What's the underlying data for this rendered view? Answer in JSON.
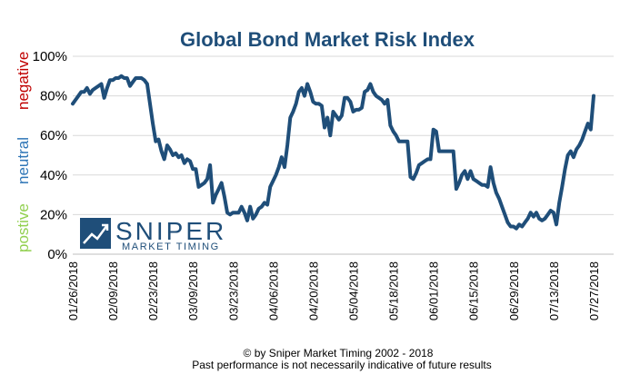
{
  "colors": {
    "title": "#1f4e79",
    "line": "#1f4e79",
    "grid": "#d9d9d9",
    "negative": "#c00000",
    "neutral": "#2e75b6",
    "positive": "#92d050",
    "logo": "#1f4e79"
  },
  "side_labels": {
    "negative": "negative",
    "neutral": "neutral",
    "positive": "postive"
  },
  "logo": {
    "icon": "chart-arrow-icon",
    "line1": "SNIPER",
    "line2": "MARKET TIMING"
  },
  "footer": {
    "line1": "© by Sniper Market Timing 2002 - 2018",
    "line2": "Past performance is not necessarily indicative of future results"
  },
  "chart_data": {
    "type": "line",
    "title": "Global Bond Market Risk Index",
    "xlabel": "",
    "ylabel": "",
    "ylim": [
      0,
      100
    ],
    "yticks": [
      "0%",
      "20%",
      "40%",
      "60%",
      "80%",
      "100%"
    ],
    "grid": "horizontal",
    "x_start": "01/26/2018",
    "x_end": "08/03/2018",
    "xticks": [
      "01/26/2018",
      "02/09/2018",
      "02/23/2018",
      "03/09/2018",
      "03/23/2018",
      "04/06/2018",
      "04/20/2018",
      "05/04/2018",
      "05/18/2018",
      "06/01/2018",
      "06/15/2018",
      "06/29/2018",
      "07/13/2018",
      "07/27/2018"
    ],
    "series": [
      {
        "values": [
          [
            "01/26/2018",
            76
          ],
          [
            "01/27/2018",
            78
          ],
          [
            "01/28/2018",
            80
          ],
          [
            "01/29/2018",
            82
          ],
          [
            "01/30/2018",
            82
          ],
          [
            "01/31/2018",
            84
          ],
          [
            "02/01/2018",
            81
          ],
          [
            "02/02/2018",
            83
          ],
          [
            "02/03/2018",
            84
          ],
          [
            "02/04/2018",
            85
          ],
          [
            "02/05/2018",
            86
          ],
          [
            "02/06/2018",
            79
          ],
          [
            "02/07/2018",
            84
          ],
          [
            "02/08/2018",
            88
          ],
          [
            "02/09/2018",
            88
          ],
          [
            "02/10/2018",
            89
          ],
          [
            "02/11/2018",
            89
          ],
          [
            "02/12/2018",
            90
          ],
          [
            "02/13/2018",
            89
          ],
          [
            "02/14/2018",
            89
          ],
          [
            "02/15/2018",
            85
          ],
          [
            "02/16/2018",
            87
          ],
          [
            "02/17/2018",
            89
          ],
          [
            "02/18/2018",
            89
          ],
          [
            "02/19/2018",
            89
          ],
          [
            "02/20/2018",
            88
          ],
          [
            "02/21/2018",
            86
          ],
          [
            "02/22/2018",
            76
          ],
          [
            "02/23/2018",
            66
          ],
          [
            "02/24/2018",
            57
          ],
          [
            "02/25/2018",
            58
          ],
          [
            "02/26/2018",
            52
          ],
          [
            "02/27/2018",
            48
          ],
          [
            "02/28/2018",
            55
          ],
          [
            "03/01/2018",
            53
          ],
          [
            "03/02/2018",
            50
          ],
          [
            "03/03/2018",
            51
          ],
          [
            "03/04/2018",
            49
          ],
          [
            "03/05/2018",
            50
          ],
          [
            "03/06/2018",
            46
          ],
          [
            "03/07/2018",
            48
          ],
          [
            "03/08/2018",
            47
          ],
          [
            "03/09/2018",
            43
          ],
          [
            "03/10/2018",
            43
          ],
          [
            "03/11/2018",
            34
          ],
          [
            "03/12/2018",
            35
          ],
          [
            "03/13/2018",
            36
          ],
          [
            "03/14/2018",
            38
          ],
          [
            "03/15/2018",
            45
          ],
          [
            "03/16/2018",
            26
          ],
          [
            "03/17/2018",
            30
          ],
          [
            "03/18/2018",
            33
          ],
          [
            "03/19/2018",
            36
          ],
          [
            "03/20/2018",
            29
          ],
          [
            "03/21/2018",
            21
          ],
          [
            "03/22/2018",
            20
          ],
          [
            "03/23/2018",
            21
          ],
          [
            "03/24/2018",
            21
          ],
          [
            "03/25/2018",
            21
          ],
          [
            "03/26/2018",
            24
          ],
          [
            "03/27/2018",
            21
          ],
          [
            "03/28/2018",
            17
          ],
          [
            "03/29/2018",
            24
          ],
          [
            "03/30/2018",
            18
          ],
          [
            "03/31/2018",
            20
          ],
          [
            "04/01/2018",
            23
          ],
          [
            "04/02/2018",
            24
          ],
          [
            "04/03/2018",
            26
          ],
          [
            "04/04/2018",
            25
          ],
          [
            "04/05/2018",
            34
          ],
          [
            "04/06/2018",
            37
          ],
          [
            "04/07/2018",
            40
          ],
          [
            "04/08/2018",
            44
          ],
          [
            "04/09/2018",
            49
          ],
          [
            "04/10/2018",
            44
          ],
          [
            "04/11/2018",
            55
          ],
          [
            "04/12/2018",
            69
          ],
          [
            "04/13/2018",
            72
          ],
          [
            "04/14/2018",
            76
          ],
          [
            "04/15/2018",
            82
          ],
          [
            "04/16/2018",
            84
          ],
          [
            "04/17/2018",
            80
          ],
          [
            "04/18/2018",
            86
          ],
          [
            "04/19/2018",
            82
          ],
          [
            "04/20/2018",
            77
          ],
          [
            "04/21/2018",
            76
          ],
          [
            "04/22/2018",
            76
          ],
          [
            "04/23/2018",
            75
          ],
          [
            "04/24/2018",
            64
          ],
          [
            "04/25/2018",
            69
          ],
          [
            "04/26/2018",
            60
          ],
          [
            "04/27/2018",
            72
          ],
          [
            "04/28/2018",
            70
          ],
          [
            "04/29/2018",
            68
          ],
          [
            "04/30/2018",
            70
          ],
          [
            "05/01/2018",
            79
          ],
          [
            "05/02/2018",
            79
          ],
          [
            "05/03/2018",
            77
          ],
          [
            "05/04/2018",
            72
          ],
          [
            "05/05/2018",
            73
          ],
          [
            "05/06/2018",
            73
          ],
          [
            "05/07/2018",
            74
          ],
          [
            "05/08/2018",
            82
          ],
          [
            "05/09/2018",
            83
          ],
          [
            "05/10/2018",
            86
          ],
          [
            "05/11/2018",
            82
          ],
          [
            "05/12/2018",
            80
          ],
          [
            "05/13/2018",
            79
          ],
          [
            "05/14/2018",
            78
          ],
          [
            "05/15/2018",
            76
          ],
          [
            "05/16/2018",
            78
          ],
          [
            "05/17/2018",
            65
          ],
          [
            "05/18/2018",
            62
          ],
          [
            "05/19/2018",
            60
          ],
          [
            "05/20/2018",
            57
          ],
          [
            "05/21/2018",
            57
          ],
          [
            "05/22/2018",
            57
          ],
          [
            "05/23/2018",
            57
          ],
          [
            "05/24/2018",
            39
          ],
          [
            "05/25/2018",
            38
          ],
          [
            "05/26/2018",
            41
          ],
          [
            "05/27/2018",
            45
          ],
          [
            "05/28/2018",
            46
          ],
          [
            "05/29/2018",
            47
          ],
          [
            "05/30/2018",
            48
          ],
          [
            "05/31/2018",
            48
          ],
          [
            "06/01/2018",
            63
          ],
          [
            "06/02/2018",
            62
          ],
          [
            "06/03/2018",
            52
          ],
          [
            "06/04/2018",
            52
          ],
          [
            "06/05/2018",
            52
          ],
          [
            "06/06/2018",
            52
          ],
          [
            "06/07/2018",
            52
          ],
          [
            "06/08/2018",
            52
          ],
          [
            "06/09/2018",
            33
          ],
          [
            "06/10/2018",
            36
          ],
          [
            "06/11/2018",
            40
          ],
          [
            "06/12/2018",
            42
          ],
          [
            "06/13/2018",
            38
          ],
          [
            "06/14/2018",
            42
          ],
          [
            "06/15/2018",
            38
          ],
          [
            "06/16/2018",
            37
          ],
          [
            "06/17/2018",
            36
          ],
          [
            "06/18/2018",
            35
          ],
          [
            "06/19/2018",
            35
          ],
          [
            "06/20/2018",
            34
          ],
          [
            "06/21/2018",
            44
          ],
          [
            "06/22/2018",
            36
          ],
          [
            "06/23/2018",
            31
          ],
          [
            "06/24/2018",
            28
          ],
          [
            "06/25/2018",
            24
          ],
          [
            "06/26/2018",
            20
          ],
          [
            "06/27/2018",
            16
          ],
          [
            "06/28/2018",
            14
          ],
          [
            "06/29/2018",
            14
          ],
          [
            "06/30/2018",
            13
          ],
          [
            "07/01/2018",
            15
          ],
          [
            "07/02/2018",
            14
          ],
          [
            "07/03/2018",
            16
          ],
          [
            "07/04/2018",
            18
          ],
          [
            "07/05/2018",
            21
          ],
          [
            "07/06/2018",
            19
          ],
          [
            "07/07/2018",
            21
          ],
          [
            "07/08/2018",
            18
          ],
          [
            "07/09/2018",
            17
          ],
          [
            "07/10/2018",
            18
          ],
          [
            "07/11/2018",
            20
          ],
          [
            "07/12/2018",
            22
          ],
          [
            "07/13/2018",
            21
          ],
          [
            "07/14/2018",
            15
          ],
          [
            "07/15/2018",
            26
          ],
          [
            "07/16/2018",
            34
          ],
          [
            "07/17/2018",
            43
          ],
          [
            "07/18/2018",
            50
          ],
          [
            "07/19/2018",
            52
          ],
          [
            "07/20/2018",
            49
          ],
          [
            "07/21/2018",
            53
          ],
          [
            "07/22/2018",
            55
          ],
          [
            "07/23/2018",
            58
          ],
          [
            "07/24/2018",
            62
          ],
          [
            "07/25/2018",
            66
          ],
          [
            "07/26/2018",
            63
          ],
          [
            "07/27/2018",
            80
          ]
        ]
      }
    ]
  }
}
